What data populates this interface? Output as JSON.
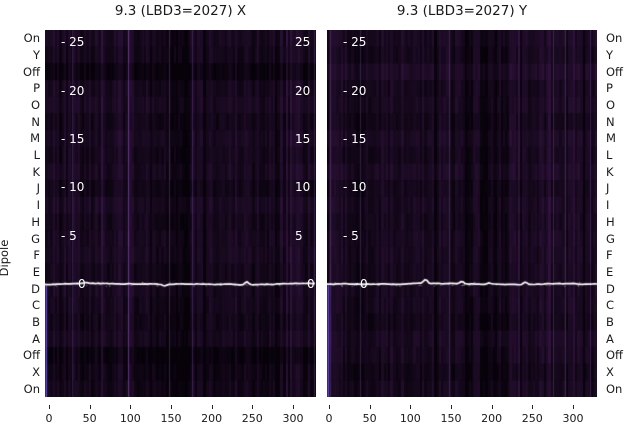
{
  "figure": {
    "left_title": "9.3 (LBD3=2027) X",
    "right_title": "9.3 (LBD3=2027) Y",
    "y_axis_label": "Dipole"
  },
  "row_labels": [
    "On",
    "Y",
    "Off",
    "P",
    "O",
    "N",
    "M",
    "L",
    "K",
    "J",
    "I",
    "H",
    "G",
    "F",
    "E",
    "D",
    "C",
    "B",
    "A",
    "Off",
    "X",
    "On"
  ],
  "x_tick_labels": [
    "0",
    "50",
    "100",
    "150",
    "200",
    "250",
    "300"
  ],
  "secondary_ticks": [
    {
      "v": 25,
      "left_text": "- 25",
      "right_text": "25"
    },
    {
      "v": 20,
      "left_text": "- 20",
      "right_text": "20"
    },
    {
      "v": 15,
      "left_text": "- 15",
      "right_text": "15"
    },
    {
      "v": 10,
      "left_text": "- 10",
      "right_text": "10"
    },
    {
      "v": 5,
      "left_text": "- 5",
      "right_text": "5"
    },
    {
      "v": 0,
      "left_text": "0",
      "right_text": "0"
    }
  ],
  "colors": {
    "background": "#ffffff",
    "text": "#1a1a1a",
    "heat_dark": "#060209",
    "heat_light": "#341442",
    "overlay_line": "#ffffff",
    "overlay_text": "#ffffff",
    "edge_strip": "#6a50d8",
    "tick": "#262626"
  },
  "chart_data": {
    "type": "heatmap",
    "ylabel": "Dipole",
    "panels": [
      {
        "title": "9.3 (LBD3=2027) X",
        "x_ticks": [
          0,
          50,
          100,
          150,
          200,
          250,
          300
        ],
        "x_range_approx": [
          -5,
          328
        ],
        "y_categories": [
          "On",
          "Y",
          "Off",
          "P",
          "O",
          "N",
          "M",
          "L",
          "K",
          "J",
          "I",
          "H",
          "G",
          "F",
          "E",
          "D",
          "C",
          "B",
          "A",
          "Off",
          "X",
          "On"
        ],
        "secondary_y_ticks": [
          0,
          5,
          10,
          15,
          20,
          25
        ],
        "secondary_y_range_approx": [
          -11.5,
          26.2
        ],
        "overlay_line": {
          "approx_value": 0,
          "color": "#ffffff",
          "note": "flat white trace at ~0 with small spikes"
        },
        "values_note": "cells are unlabeled low-amplitude dark-purple noise; exact cell values not readable from pixels"
      },
      {
        "title": "9.3 (LBD3=2027) Y",
        "x_ticks": [
          0,
          50,
          100,
          150,
          200,
          250,
          300
        ],
        "x_range_approx": [
          -5,
          328
        ],
        "y_categories": [
          "On",
          "Y",
          "Off",
          "P",
          "O",
          "N",
          "M",
          "L",
          "K",
          "J",
          "I",
          "H",
          "G",
          "F",
          "E",
          "D",
          "C",
          "B",
          "A",
          "Off",
          "X",
          "On"
        ],
        "secondary_y_ticks": [
          0,
          5,
          10,
          15,
          20,
          25
        ],
        "secondary_y_range_approx": [
          -11.5,
          26.2
        ],
        "overlay_line": {
          "approx_value": 0,
          "color": "#ffffff",
          "note": "flat white trace at ~0 with small spikes"
        },
        "values_note": "cells are unlabeled low-amplitude dark-purple noise; exact cell values not readable from pixels"
      }
    ]
  },
  "render": {
    "seed_x": 20271,
    "seed_y": 90412,
    "row_brightness_x": [
      0.5,
      0.42,
      0.2,
      0.45,
      0.52,
      0.38,
      0.5,
      0.42,
      0.5,
      0.36,
      0.52,
      0.42,
      0.48,
      0.5,
      0.4,
      0.46,
      0.42,
      0.36,
      0.46,
      0.15,
      0.28,
      0.38
    ],
    "row_brightness_y": [
      0.48,
      0.4,
      0.58,
      0.42,
      0.46,
      0.36,
      0.5,
      0.4,
      0.52,
      0.38,
      0.46,
      0.4,
      0.46,
      0.44,
      0.4,
      0.44,
      0.42,
      0.34,
      0.48,
      0.42,
      0.3,
      0.4
    ],
    "dark_bands_x": [
      [
        0.42,
        0.54,
        0.18
      ],
      [
        0.56,
        0.61,
        0.06
      ]
    ],
    "dark_bands_y": [
      [
        0.46,
        0.66,
        0.11
      ],
      [
        0.12,
        0.14,
        0.1
      ]
    ],
    "line_spikes_x": [
      {
        "x": 0.745,
        "dy": -3.2
      },
      {
        "x": 0.44,
        "dy": 1.6
      },
      {
        "x": 0.15,
        "dy": -1.2
      }
    ],
    "line_spikes_y": [
      {
        "x": 0.365,
        "dy": -4.0
      },
      {
        "x": 0.5,
        "dy": -2.6
      },
      {
        "x": 0.735,
        "dy": -2.8
      },
      {
        "x": 0.6,
        "dy": -1.6
      }
    ]
  }
}
